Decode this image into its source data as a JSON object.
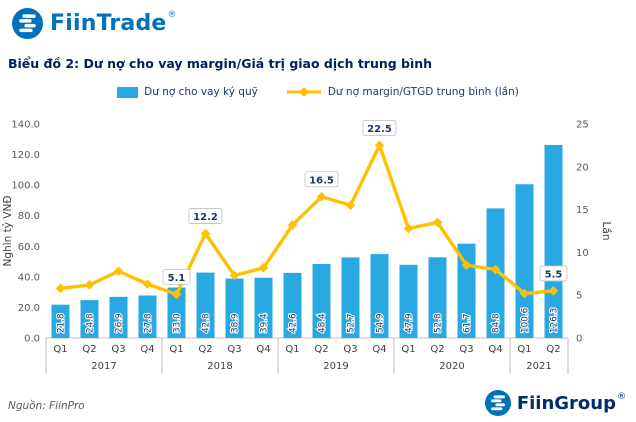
{
  "header": {
    "brand": "FiinTrade",
    "registered": "®",
    "brand_color": "#0071BC"
  },
  "footer": {
    "source": "Nguồn: FiinPro",
    "brand": "FiinGroup",
    "registered": "®",
    "brand_color": "#002B6C"
  },
  "colors": {
    "bar_blue": "#29A9E1",
    "line_yellow": "#FFC000",
    "title_navy": "#002060",
    "label_navy": "#1F3864"
  },
  "chart_data": {
    "type": "bar",
    "combo": "bar+line",
    "title": "Biểu đồ 2: Dư nợ cho vay margin/Giá trị giao dịch trung bình",
    "categories": [
      "Q1",
      "Q2",
      "Q3",
      "Q4",
      "Q1",
      "Q2",
      "Q3",
      "Q4",
      "Q1",
      "Q2",
      "Q3",
      "Q4",
      "Q1",
      "Q2",
      "Q3",
      "Q4",
      "Q1",
      "Q2"
    ],
    "year_groups": [
      {
        "label": "2017",
        "span": 4
      },
      {
        "label": "2018",
        "span": 4
      },
      {
        "label": "2019",
        "span": 4
      },
      {
        "label": "2020",
        "span": 4
      },
      {
        "label": "2021",
        "span": 2
      }
    ],
    "series": [
      {
        "name": "Dư nợ cho vay ký quỹ",
        "type": "bar",
        "axis": "left",
        "color": "#29A9E1",
        "values": [
          21.8,
          24.8,
          26.9,
          27.8,
          33.0,
          42.8,
          38.9,
          39.4,
          42.6,
          48.4,
          52.7,
          54.9,
          47.9,
          52.8,
          61.7,
          84.8,
          100.6,
          126.3
        ]
      },
      {
        "name": "Dư nợ margin/GTGD trung bình (lần)",
        "type": "line",
        "axis": "right",
        "color": "#FFC000",
        "values": [
          5.8,
          6.2,
          7.8,
          6.3,
          5.1,
          12.2,
          7.3,
          8.2,
          13.2,
          16.5,
          15.5,
          22.5,
          12.8,
          13.5,
          8.5,
          8.0,
          5.2,
          5.5
        ],
        "labeled_points": [
          {
            "index": 4,
            "label": "5.1"
          },
          {
            "index": 5,
            "label": "12.2"
          },
          {
            "index": 9,
            "label": "16.5"
          },
          {
            "index": 11,
            "label": "22.5"
          },
          {
            "index": 17,
            "label": "5.5"
          }
        ]
      }
    ],
    "ylabel_left": "Nghìn tỷ VNĐ",
    "ylabel_right": "Lần",
    "ylim_left": [
      0,
      140
    ],
    "yticks_left": [
      "0.0",
      "20.0",
      "40.0",
      "60.0",
      "80.0",
      "100.0",
      "120.0",
      "140.0"
    ],
    "ylim_right": [
      0,
      25
    ],
    "yticks_right": [
      "0",
      "5",
      "10",
      "15",
      "20",
      "25"
    ],
    "grid": false,
    "legend_position": "top"
  }
}
